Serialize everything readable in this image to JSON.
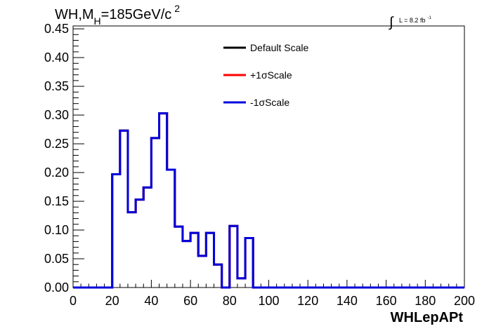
{
  "chart_data": {
    "type": "line",
    "title_main": "WH,M",
    "title_sub": "H",
    "title_rest": "=185GeV/c",
    "title_sup": "2",
    "lumi_integral": "∫",
    "lumi_text": "L = 8.2 fb",
    "lumi_sup": "-1",
    "xlabel": "WHLepAPt",
    "ylabel": "",
    "xlim": [
      0,
      200
    ],
    "ylim": [
      0,
      0.455
    ],
    "x_ticks": [
      0,
      20,
      40,
      60,
      80,
      100,
      120,
      140,
      160,
      180,
      200
    ],
    "x_tick_labels": [
      "0",
      "20",
      "40",
      "60",
      "80",
      "100",
      "120",
      "140",
      "160",
      "180",
      "200"
    ],
    "y_ticks": [
      0,
      0.05,
      0.1,
      0.15,
      0.2,
      0.25,
      0.3,
      0.35,
      0.4,
      0.45
    ],
    "y_tick_labels": [
      "0.00",
      "0.05",
      "0.10",
      "0.15",
      "0.20",
      "0.25",
      "0.30",
      "0.35",
      "0.40",
      "0.45"
    ],
    "grid": false,
    "legend_position": "top-center",
    "bin_edges": [
      0,
      4,
      8,
      12,
      16,
      20,
      24,
      28,
      32,
      36,
      40,
      44,
      48,
      52,
      56,
      60,
      64,
      68,
      72,
      76,
      80,
      84,
      88,
      92,
      96,
      100,
      104,
      108,
      112,
      116,
      120,
      124,
      128,
      132,
      136,
      140,
      144,
      148,
      152,
      156,
      160,
      164,
      168,
      172,
      176,
      180,
      184,
      188,
      192,
      196,
      200
    ],
    "series": [
      {
        "name": "Default Scale",
        "color": "#000000",
        "values": [
          0,
          0,
          0,
          0,
          0,
          0.197,
          0.273,
          0.131,
          0.153,
          0.174,
          0.26,
          0.303,
          0.205,
          0.106,
          0.081,
          0.095,
          0.055,
          0.095,
          0.04,
          0,
          0.107,
          0.016,
          0.086,
          0,
          0,
          0,
          0,
          0,
          0,
          0,
          0,
          0,
          0,
          0,
          0,
          0,
          0,
          0,
          0,
          0,
          0,
          0,
          0,
          0,
          0,
          0,
          0,
          0,
          0,
          0
        ]
      },
      {
        "name": "+1σScale",
        "color": "#ff0000",
        "values": [
          0,
          0,
          0,
          0,
          0,
          0.197,
          0.273,
          0.131,
          0.153,
          0.174,
          0.26,
          0.303,
          0.205,
          0.106,
          0.081,
          0.095,
          0.055,
          0.095,
          0.04,
          0,
          0.107,
          0.016,
          0.086,
          0,
          0,
          0,
          0,
          0,
          0,
          0,
          0,
          0,
          0,
          0,
          0,
          0,
          0,
          0,
          0,
          0,
          0,
          0,
          0,
          0,
          0,
          0,
          0,
          0,
          0,
          0
        ]
      },
      {
        "name": "-1σScale",
        "color": "#0000dd",
        "values": [
          0,
          0,
          0,
          0,
          0,
          0.197,
          0.273,
          0.131,
          0.153,
          0.174,
          0.26,
          0.303,
          0.205,
          0.106,
          0.081,
          0.095,
          0.055,
          0.095,
          0.04,
          0,
          0.107,
          0.016,
          0.086,
          0,
          0,
          0,
          0,
          0,
          0,
          0,
          0,
          0,
          0,
          0,
          0,
          0,
          0,
          0,
          0,
          0,
          0,
          0,
          0,
          0,
          0,
          0,
          0,
          0,
          0,
          0
        ]
      }
    ]
  }
}
